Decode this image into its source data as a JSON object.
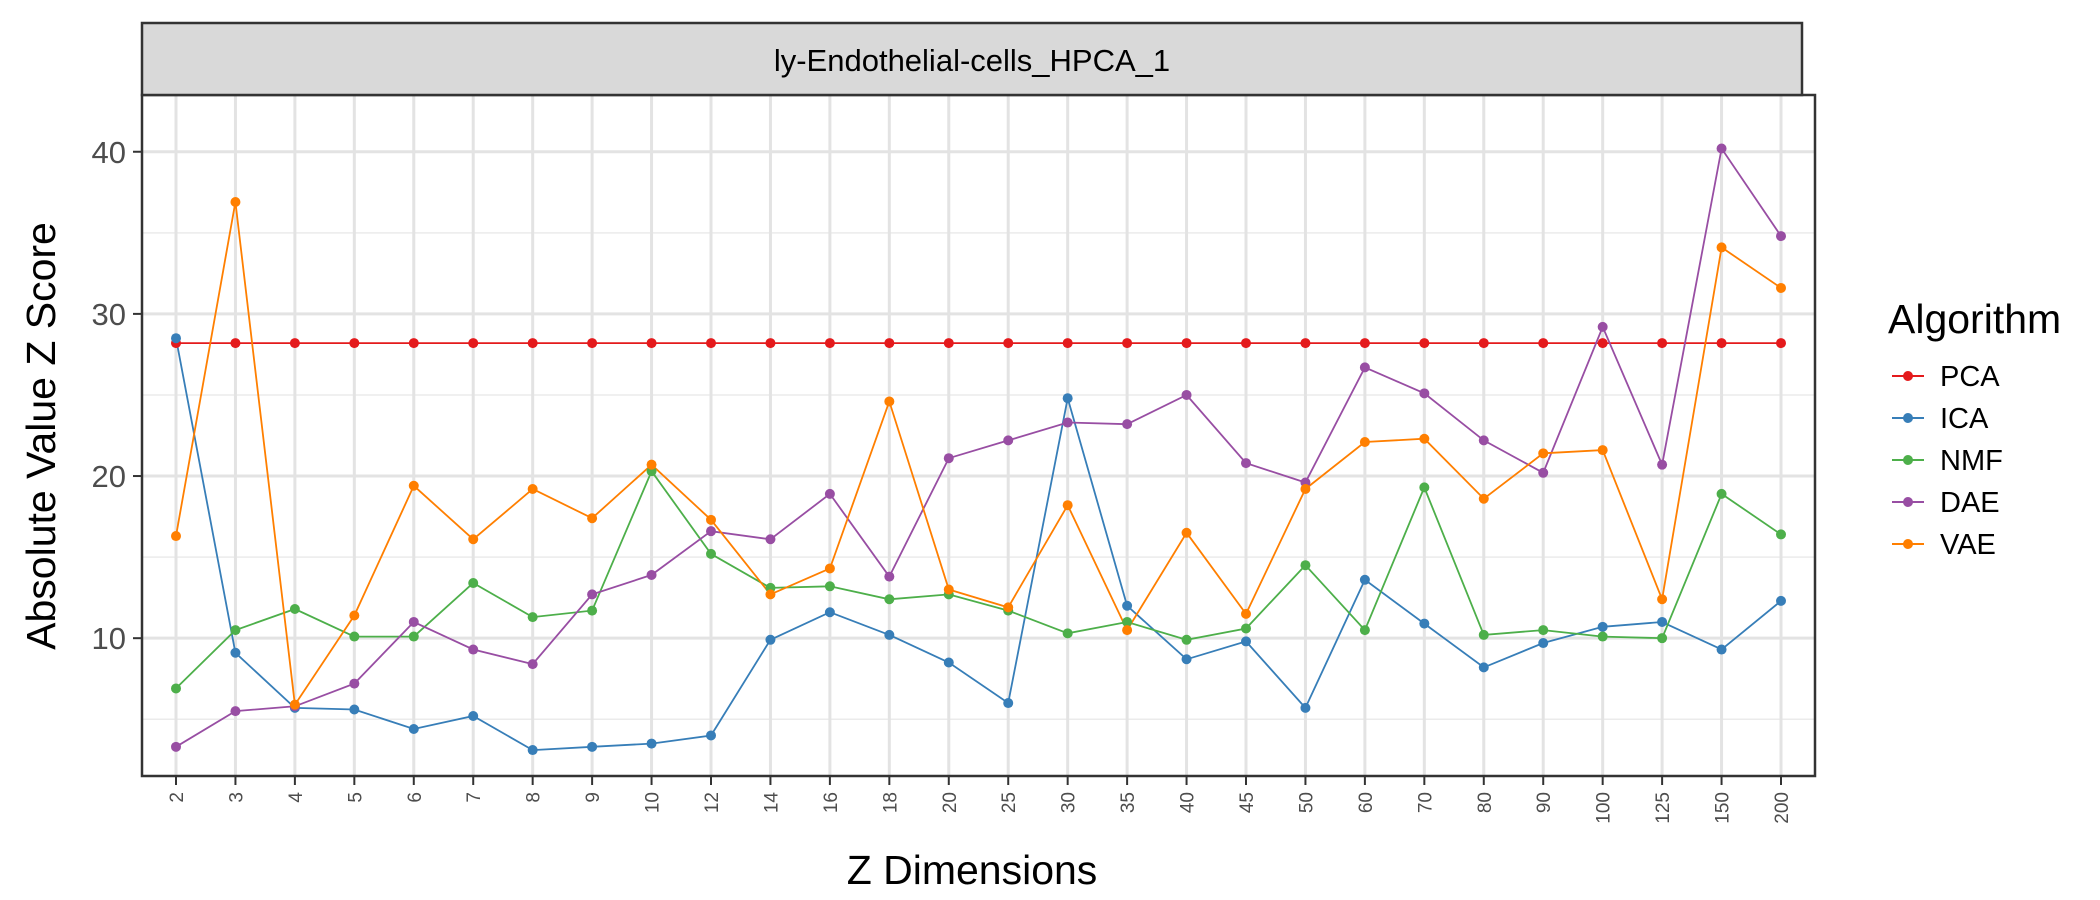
{
  "chart_data": {
    "type": "line",
    "title": "ly-Endothelial-cells_HPCA_1",
    "xlabel": "Z Dimensions",
    "ylabel": "Absolute Value Z Score",
    "categories": [
      "2",
      "3",
      "4",
      "5",
      "6",
      "7",
      "8",
      "9",
      "10",
      "12",
      "14",
      "16",
      "18",
      "20",
      "25",
      "30",
      "35",
      "40",
      "45",
      "50",
      "60",
      "70",
      "80",
      "90",
      "100",
      "125",
      "150",
      "200"
    ],
    "yticks": [
      10,
      20,
      30,
      40
    ],
    "ylim": [
      1.5,
      43.5
    ],
    "grid": true,
    "legend": {
      "title": "Algorithm",
      "placement": "right"
    },
    "series": [
      {
        "name": "PCA",
        "color": "#e41a1c",
        "values": [
          28.2,
          28.2,
          28.2,
          28.2,
          28.2,
          28.2,
          28.2,
          28.2,
          28.2,
          28.2,
          28.2,
          28.2,
          28.2,
          28.2,
          28.2,
          28.2,
          28.2,
          28.2,
          28.2,
          28.2,
          28.2,
          28.2,
          28.2,
          28.2,
          28.2,
          28.2,
          28.2,
          28.2
        ]
      },
      {
        "name": "ICA",
        "color": "#377eb8",
        "values": [
          28.5,
          9.1,
          5.7,
          5.6,
          4.4,
          5.2,
          3.1,
          3.3,
          3.5,
          4.0,
          9.9,
          11.6,
          10.2,
          8.5,
          6.0,
          24.8,
          12.0,
          8.7,
          9.8,
          5.7,
          13.6,
          10.9,
          8.2,
          9.7,
          10.7,
          11.0,
          9.3,
          12.3
        ]
      },
      {
        "name": "NMF",
        "color": "#4daf4a",
        "values": [
          6.9,
          10.5,
          11.8,
          10.1,
          10.1,
          13.4,
          11.3,
          11.7,
          20.3,
          15.2,
          13.1,
          13.2,
          12.4,
          12.7,
          11.7,
          10.3,
          11.0,
          9.9,
          10.6,
          14.5,
          10.5,
          19.3,
          10.2,
          10.5,
          10.1,
          10.0,
          18.9,
          16.4
        ]
      },
      {
        "name": "DAE",
        "color": "#984ea3",
        "values": [
          3.3,
          5.5,
          5.8,
          7.2,
          11.0,
          9.3,
          8.4,
          12.7,
          13.9,
          16.6,
          16.1,
          18.9,
          13.8,
          21.1,
          22.2,
          23.3,
          23.2,
          25.0,
          20.8,
          19.6,
          26.7,
          25.1,
          22.2,
          20.2,
          29.2,
          20.7,
          40.2,
          34.8
        ]
      },
      {
        "name": "VAE",
        "color": "#ff7f00",
        "values": [
          16.3,
          36.9,
          5.9,
          11.4,
          19.4,
          16.1,
          19.2,
          17.4,
          20.7,
          17.3,
          12.7,
          14.3,
          24.6,
          13.0,
          11.9,
          18.2,
          10.5,
          16.5,
          11.5,
          19.2,
          22.1,
          22.3,
          18.6,
          21.4,
          21.6,
          12.4,
          34.1,
          31.6
        ]
      }
    ]
  }
}
